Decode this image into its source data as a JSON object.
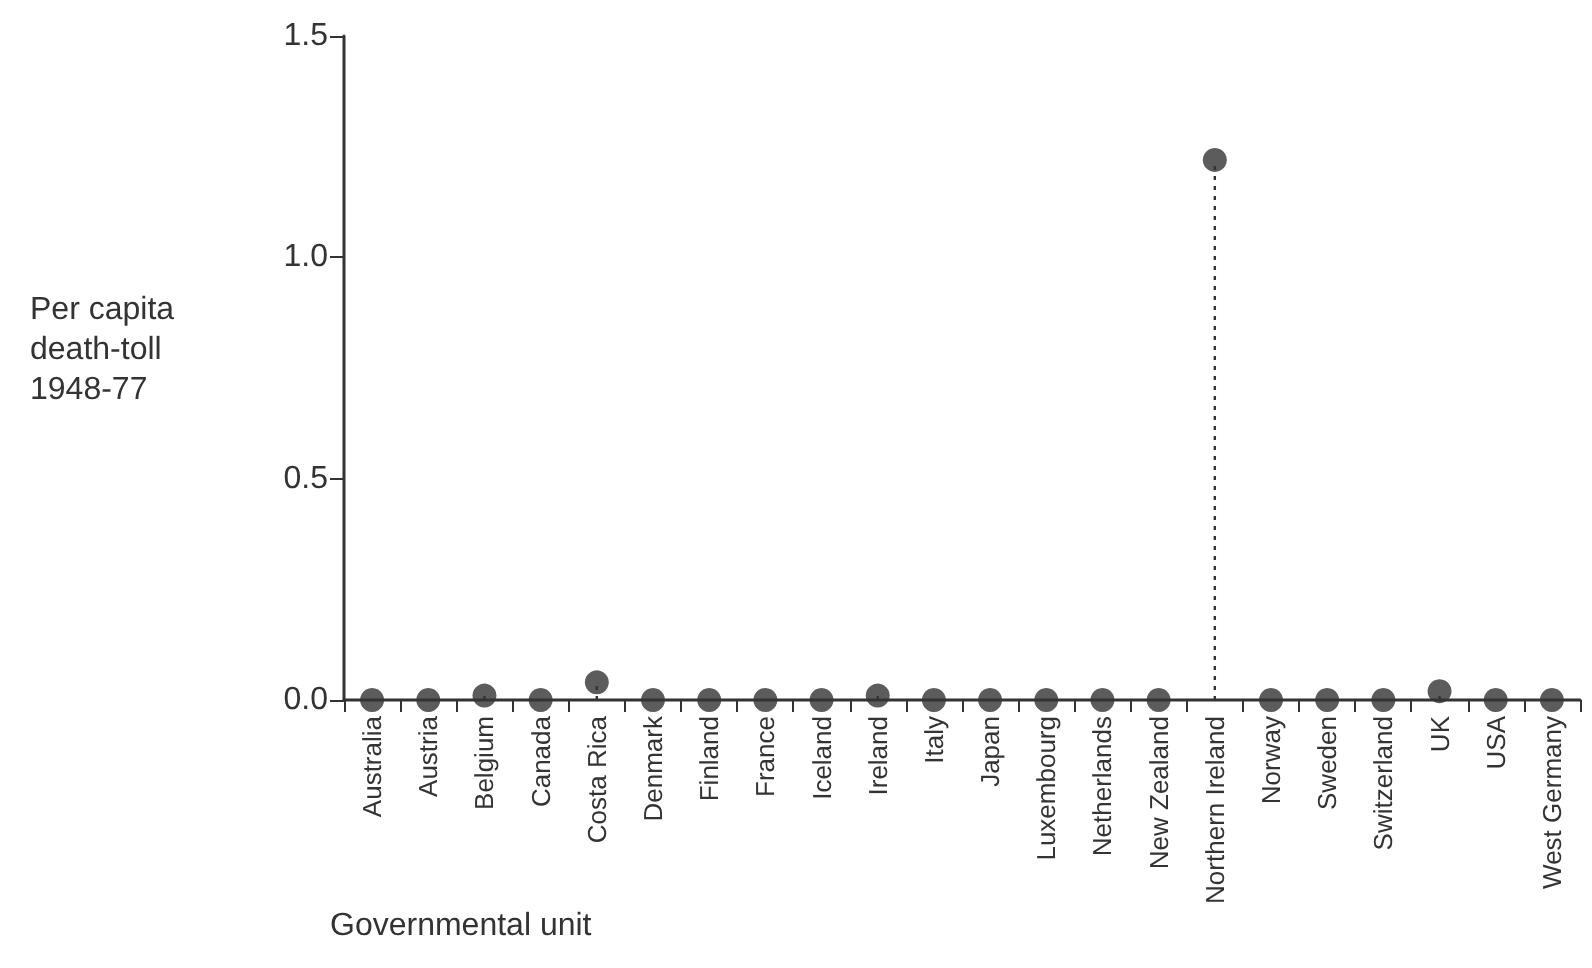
{
  "chart_data": {
    "type": "lollipop",
    "xlabel": "Governmental unit",
    "ylabel": "Per capita\ndeath-toll\n1948-77",
    "categories": [
      "Australia",
      "Austria",
      "Belgium",
      "Canada",
      "Costa Rica",
      "Denmark",
      "Finland",
      "France",
      "Iceland",
      "Ireland",
      "Italy",
      "Japan",
      "Luxembourg",
      "Netherlands",
      "New Zealand",
      "Northern Ireland",
      "Norway",
      "Sweden",
      "Switzerland",
      "UK",
      "USA",
      "West Germany"
    ],
    "values": [
      0,
      0,
      0.01,
      0,
      0.04,
      0,
      0,
      0,
      0,
      0.01,
      0,
      0,
      0,
      0,
      0,
      1.22,
      0,
      0,
      0,
      0.02,
      0,
      0
    ],
    "color": "#333333",
    "ylim": [
      0,
      1.5
    ],
    "yticks": [
      {
        "value": 0,
        "label": "0.0"
      },
      {
        "value": 0.5,
        "label": "0.5"
      },
      {
        "value": 1,
        "label": "1.0"
      },
      {
        "value": 1.5,
        "label": "1.5"
      }
    ],
    "marker": "circle",
    "line_style": "dotted"
  }
}
